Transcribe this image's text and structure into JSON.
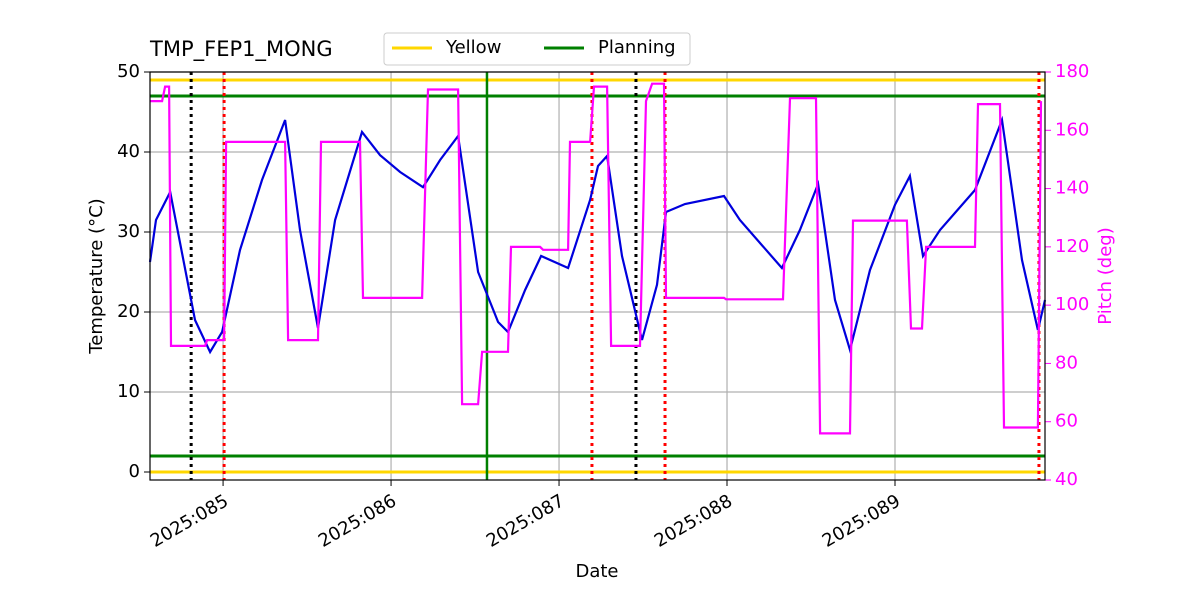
{
  "chart_data": {
    "type": "line",
    "title": "TMP_FEP1_MONG",
    "xlabel": "Date",
    "ylabel": "Temperature (°C)",
    "y2label": "Pitch (deg)",
    "y2color": "#ff00ff",
    "xlim": [
      84.565,
      89.893
    ],
    "xticks": [
      {
        "value": 85,
        "label": "2025:085"
      },
      {
        "value": 86,
        "label": "2025:086"
      },
      {
        "value": 87,
        "label": "2025:087"
      },
      {
        "value": 88,
        "label": "2025:088"
      },
      {
        "value": 89,
        "label": "2025:089"
      }
    ],
    "ylim": [
      -1,
      50
    ],
    "yticks": [
      0,
      10,
      20,
      30,
      40,
      50
    ],
    "y2lim": [
      40,
      180
    ],
    "y2ticks": [
      40,
      60,
      80,
      100,
      120,
      140,
      160,
      180
    ],
    "grid": true,
    "legend": "upper center",
    "series": [
      {
        "color": "#0000dd",
        "x": [
          84.565,
          84.601,
          84.685,
          84.833,
          84.923,
          84.994,
          85.101,
          85.232,
          85.369,
          85.458,
          85.565,
          85.667,
          85.827,
          85.935,
          86.054,
          86.19,
          86.292,
          86.399,
          86.518,
          86.637,
          86.696,
          86.798,
          86.893,
          87.054,
          87.185,
          87.232,
          87.286,
          87.375,
          87.494,
          87.583,
          87.637,
          87.75,
          87.982,
          88.077,
          88.327,
          88.434,
          88.542,
          88.643,
          88.732,
          88.851,
          89.0,
          89.089,
          89.167,
          89.268,
          89.476,
          89.637,
          89.756,
          89.851,
          89.893
        ],
        "values": [
          26.25,
          31.5,
          35,
          19,
          15,
          17.5,
          27.75,
          36.5,
          44,
          30.25,
          18,
          31.5,
          42.5,
          39.6,
          37.5,
          35.6,
          39,
          42,
          25,
          18.75,
          17.5,
          22.75,
          27,
          25.5,
          34,
          38.25,
          39.5,
          27,
          16.5,
          23.4,
          32.5,
          33.5,
          34.5,
          31.5,
          25.5,
          30.25,
          36,
          21.5,
          15.25,
          25.25,
          33.4,
          37,
          27,
          30.25,
          35.25,
          44,
          26.5,
          17.75,
          21.5
        ]
      },
      {
        "color": "#ff00ff",
        "axis": "y2",
        "x": [
          84.565,
          84.637,
          84.655,
          84.679,
          84.69,
          84.893,
          84.905,
          85.006,
          85.018,
          85.369,
          85.387,
          85.565,
          85.583,
          85.815,
          85.833,
          86.185,
          86.22,
          86.399,
          86.423,
          86.518,
          86.542,
          86.696,
          86.714,
          86.887,
          86.905,
          87.054,
          87.065,
          87.185,
          87.208,
          87.286,
          87.31,
          87.482,
          87.518,
          87.554,
          87.625,
          87.637,
          87.982,
          87.994,
          88.333,
          88.375,
          88.53,
          88.554,
          88.732,
          88.75,
          89.071,
          89.095,
          89.161,
          89.185,
          89.476,
          89.494,
          89.625,
          89.649,
          89.851,
          89.869
        ],
        "values": [
          170,
          170,
          175,
          175,
          86,
          86,
          88,
          88,
          156,
          156,
          88,
          88,
          156,
          156,
          102.5,
          102.5,
          174,
          174,
          66,
          66,
          84,
          84,
          120,
          120,
          119,
          119,
          156,
          156,
          175,
          175,
          86,
          86,
          170,
          176,
          176,
          102.5,
          102.5,
          102,
          102,
          171,
          171,
          56,
          56,
          129,
          129,
          92,
          92,
          120,
          120,
          169,
          169,
          58,
          58,
          170
        ]
      }
    ],
    "hlines": [
      {
        "name": "Yellow",
        "color": "#ffd700",
        "values": [
          0,
          49
        ]
      },
      {
        "name": "Planning",
        "color": "#008000",
        "values": [
          2,
          47
        ]
      }
    ],
    "vlines": [
      {
        "color": "#008000",
        "style": "solid",
        "x": [
          86.571
        ]
      },
      {
        "color": "#000000",
        "style": "dotted",
        "x": [
          84.81,
          87.458
        ]
      },
      {
        "color": "#ff0000",
        "style": "dotted",
        "x": [
          85.006,
          87.196,
          87.631,
          89.857
        ]
      }
    ]
  }
}
